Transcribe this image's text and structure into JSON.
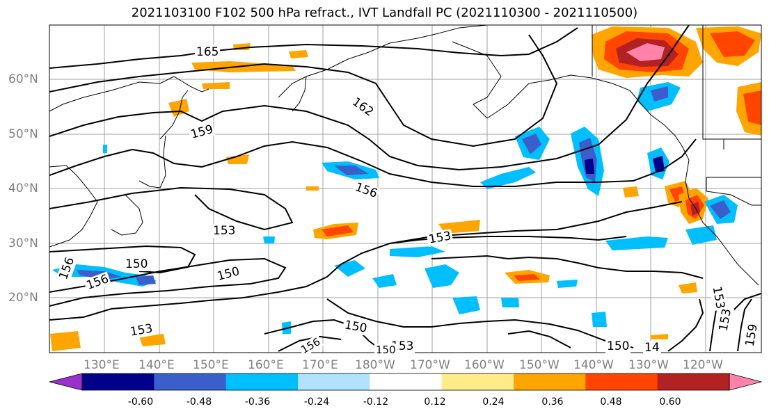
{
  "title": "2021103100 F102 500 hPa refract., IVT Landfall PC (2021110300 - 2021110500)",
  "map": {
    "lat_labels": [
      "60°N",
      "50°N",
      "40°N",
      "30°N",
      "20°N"
    ],
    "lon_labels": [
      "130°E",
      "140°E",
      "150°E",
      "160°E",
      "170°E",
      "180°W",
      "170°W",
      "160°W",
      "150°W",
      "140°W",
      "130°W",
      "120°W"
    ],
    "contour_labels": [
      "165",
      "162",
      "159",
      "156",
      "153",
      "150",
      "150",
      "153",
      "156",
      "156",
      "153",
      "150",
      "153",
      "150",
      "156",
      "153",
      "150",
      "14",
      "153",
      "159"
    ]
  },
  "colorbar": {
    "colors": [
      "#9932cc",
      "#00008b",
      "#3a5fcd",
      "#00bfff",
      "#b0e2ff",
      "#ffffff",
      "#ffec8b",
      "#ffa500",
      "#ff4500",
      "#b22222",
      "#ff82ab"
    ],
    "tick_labels": [
      "-0.60",
      "-0.48",
      "-0.36",
      "-0.24",
      "-0.12",
      "0.12",
      "0.24",
      "0.36",
      "0.48",
      "0.60"
    ]
  }
}
